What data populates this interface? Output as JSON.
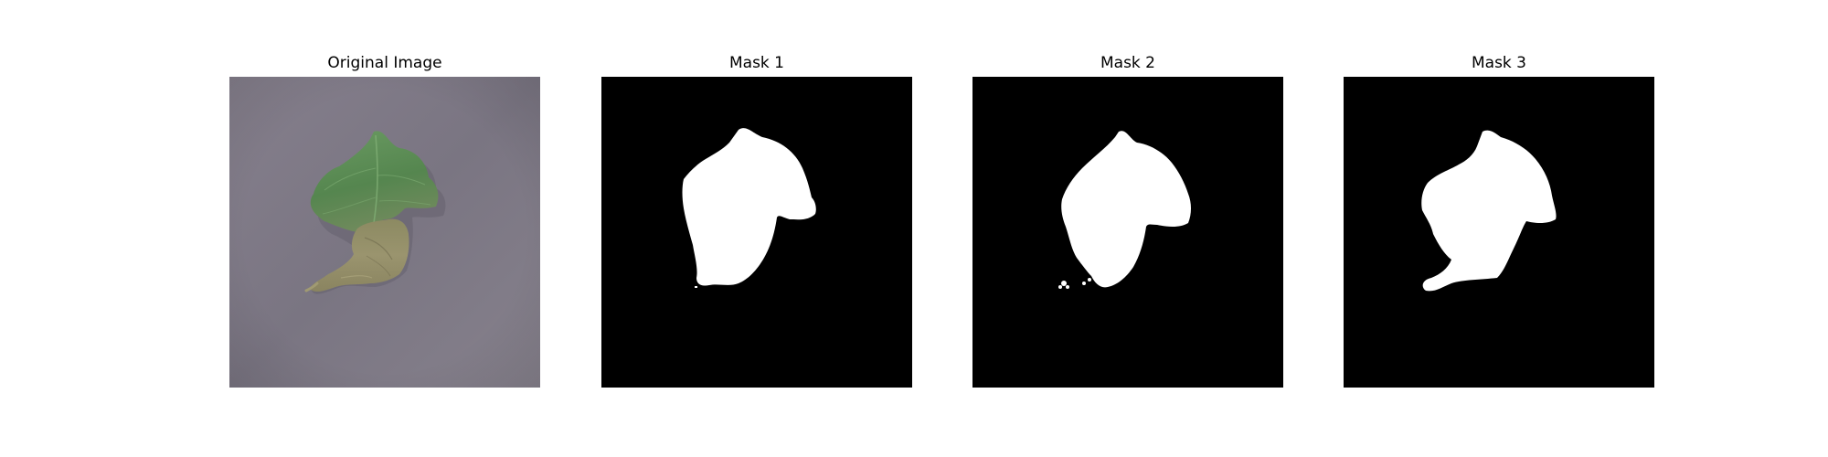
{
  "panels": [
    {
      "title": "Original Image",
      "kind": "photo"
    },
    {
      "title": "Mask 1",
      "kind": "mask"
    },
    {
      "title": "Mask 2",
      "kind": "mask"
    },
    {
      "title": "Mask 3",
      "kind": "mask"
    }
  ],
  "colors": {
    "background": "#ffffff",
    "photo_background": "#7f7a86",
    "leaf_green": "#5e8f5a",
    "leaf_diseased": "#8e8a66",
    "mask_background": "#000000",
    "mask_foreground": "#ffffff"
  }
}
